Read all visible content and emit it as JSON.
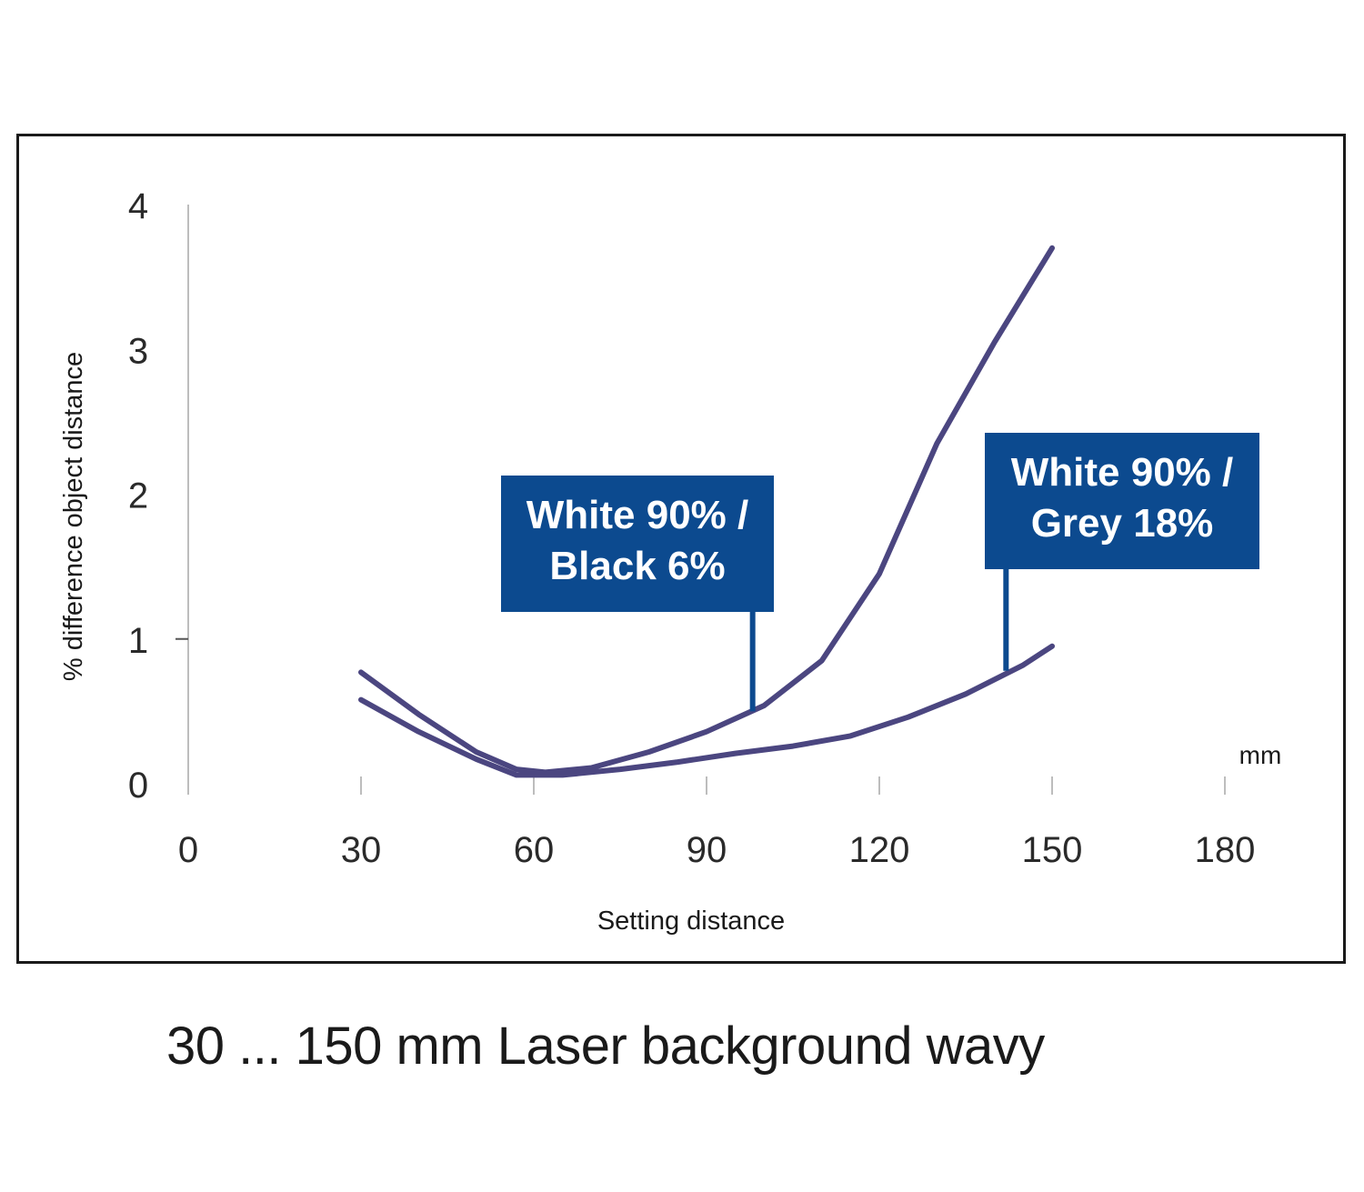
{
  "caption": "30 ... 150 mm Laser background wavy",
  "chart_data": {
    "type": "line",
    "xlabel": "Setting distance",
    "ylabel": "% difference object distance",
    "x_unit": "mm",
    "xlim": [
      0,
      180
    ],
    "ylim": [
      0,
      4
    ],
    "x_ticks": [
      0,
      30,
      60,
      90,
      120,
      150,
      180
    ],
    "y_ticks": [
      0,
      1,
      2,
      3,
      4
    ],
    "grid": false,
    "legend": "none",
    "series": [
      {
        "color": "#4b4680",
        "points": [
          [
            30,
            0.77
          ],
          [
            40,
            0.48
          ],
          [
            50,
            0.22
          ],
          [
            57,
            0.1
          ],
          [
            62,
            0.08
          ],
          [
            70,
            0.11
          ],
          [
            80,
            0.22
          ],
          [
            90,
            0.36
          ],
          [
            100,
            0.54
          ],
          [
            110,
            0.85
          ],
          [
            120,
            1.45
          ],
          [
            130,
            2.35
          ],
          [
            140,
            3.05
          ],
          [
            150,
            3.7
          ]
        ]
      },
      {
        "color": "#4b4680",
        "points": [
          [
            30,
            0.58
          ],
          [
            40,
            0.36
          ],
          [
            50,
            0.17
          ],
          [
            57,
            0.06
          ],
          [
            65,
            0.06
          ],
          [
            75,
            0.1
          ],
          [
            85,
            0.15
          ],
          [
            95,
            0.21
          ],
          [
            105,
            0.26
          ],
          [
            115,
            0.33
          ],
          [
            125,
            0.46
          ],
          [
            135,
            0.62
          ],
          [
            145,
            0.82
          ],
          [
            150,
            0.95
          ]
        ]
      }
    ],
    "annotations": [
      {
        "line1": "White 90% /",
        "line2": "Black 6%",
        "x": 98,
        "y": 0.5
      },
      {
        "line1": "White 90% /",
        "line2": "Grey 18%",
        "x": 142,
        "y": 0.78
      }
    ]
  }
}
